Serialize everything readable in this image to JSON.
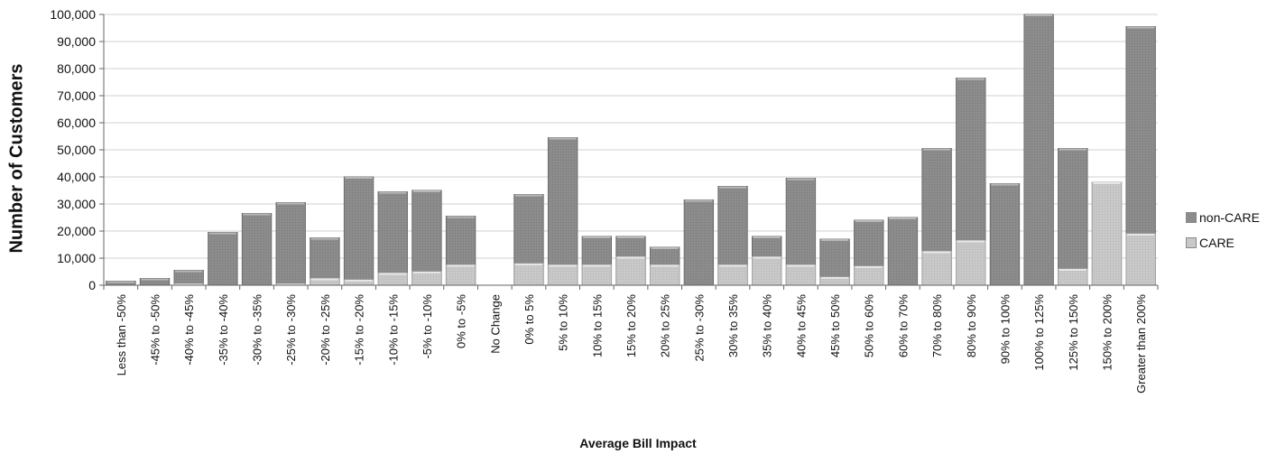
{
  "chart_data": {
    "type": "bar",
    "title": "",
    "xlabel": "Average Bill Impact",
    "ylabel": "Number of Customers",
    "ylim": [
      0,
      100000
    ],
    "yticks": [
      "0",
      "10,000",
      "20,000",
      "30,000",
      "40,000",
      "50,000",
      "60,000",
      "70,000",
      "80,000",
      "90,000",
      "100,000"
    ],
    "grid": true,
    "legend_position": "right",
    "categories": [
      "Less than -50%",
      "-45% to -50%",
      "-40% to -45%",
      "-35% to -40%",
      "-30% to -35%",
      "-25% to -30%",
      "-20% to -25%",
      "-15% to -20%",
      "-10% to -15%",
      "-5% to -10%",
      "0% to -5%",
      "No Change",
      "0% to 5%",
      "5% to 10%",
      "10% to 15%",
      "15% to 20%",
      "20% to 25%",
      "25% to -30%",
      "30% to 35%",
      "35% to 40%",
      "40% to 45%",
      "45% to 50%",
      "50% to 60%",
      "60% to 70%",
      "70% to 80%",
      "80% to 90%",
      "90% to 100%",
      "100% to 125%",
      "125% to 150%",
      "150% to 200%",
      "Greater than 200%"
    ],
    "series": [
      {
        "name": "non-CARE",
        "color": "#8c8c8c",
        "values": [
          1500,
          2500,
          5500,
          19500,
          26500,
          30500,
          17500,
          40000,
          34500,
          35000,
          25500,
          0,
          33500,
          54500,
          18000,
          18000,
          14000,
          31500,
          36500,
          18000,
          39500,
          17000,
          24000,
          25000,
          50500,
          76500,
          37500,
          100000,
          50500,
          38000,
          95500
        ]
      },
      {
        "name": "CARE",
        "color": "#c8c8c8",
        "values": [
          0,
          0,
          500,
          0,
          0,
          500,
          2500,
          2000,
          4500,
          5000,
          7500,
          0,
          8000,
          7500,
          7500,
          10500,
          7500,
          0,
          7500,
          10500,
          7500,
          3000,
          7000,
          0,
          12500,
          16500,
          0,
          0,
          6000,
          38000,
          19000
        ]
      }
    ]
  }
}
